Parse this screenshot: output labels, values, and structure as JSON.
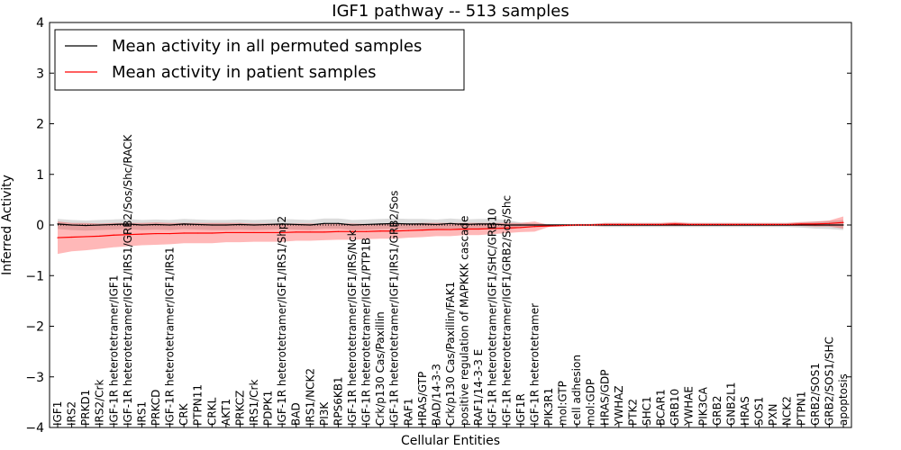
{
  "chart_data": {
    "type": "line",
    "title": "IGF1 pathway -- 513 samples",
    "xlabel": "Cellular Entities",
    "ylabel": "Inferred Activity",
    "ylim": [
      -4,
      4
    ],
    "yticks": [
      -4,
      -3,
      -2,
      -1,
      0,
      1,
      2,
      3,
      4
    ],
    "ytick_labels": [
      "−4",
      "−3",
      "−2",
      "−1",
      "0",
      "1",
      "2",
      "3",
      "4"
    ],
    "legend_position": "top-left",
    "categories": [
      "IGF1",
      "IRS2",
      "PRKD1",
      "IRS2/Crk",
      "IGF-1R heterotetramer/IGF1",
      "IGF-1R heterotetramer/IGF1/IRS1/GRB2/Sos/Shc/RACK",
      "IRS1",
      "PRKCD",
      "IGF-1R heterotetramer/IGF1/IRS1",
      "CRK",
      "PTPN11",
      "CRKL",
      "AKT1",
      "PRKCZ",
      "IRS1/Crk",
      "PDPK1",
      "IGF-1R heterotetramer/IGF1/IRS1/Shp2",
      "BAD",
      "IRS1/NCK2",
      "PI3K",
      "RPS6KB1",
      "IGF-1R heterotetramer/IGF1/IRS/Nck",
      "IGF-1R heterotetramer/IGF1/PTP1B",
      "Crk/p130 Cas/Paxillin",
      "IGF-1R heterotetramer/IGF1/IRS1/GRB2/Sos",
      "RAF1",
      "HRAS/GTP",
      "BAD/14-3-3",
      "Crk/p130 Cas/Paxillin/FAK1",
      "positive regulation of MAPKKK cascade",
      "RAF1/14-3-3 E",
      "IGF-1R heterotetramer/IGF1/SHC/GRB10",
      "IGF-1R heterotetramer/IGF1/GRB2/Sos/Shc",
      "IGF1R",
      "IGF-1R heterotetramer",
      "PIK3R1",
      "mol:GTP",
      "cell adhesion",
      "mol:GDP",
      "HRAS/GDP",
      "YWHAZ",
      "PTK2",
      "SHC1",
      "BCAR1",
      "GRB10",
      "YWHAE",
      "PIK3CA",
      "GRB2",
      "GNB2L1",
      "HRAS",
      "SOS1",
      "PXN",
      "NCK2",
      "PTPN1",
      "GRB2/SOS1",
      "GRB2/SOS1/SHC",
      "apoptosis"
    ],
    "series": [
      {
        "name": "Mean activity in all permuted samples",
        "color": "#000000",
        "values": [
          0.02,
          0.0,
          -0.01,
          0.0,
          0.01,
          0.02,
          0.0,
          0.01,
          0.0,
          0.02,
          0.01,
          0.0,
          0.0,
          0.01,
          0.0,
          0.01,
          0.02,
          0.01,
          0.0,
          0.03,
          0.03,
          0.0,
          0.01,
          0.02,
          0.03,
          0.02,
          0.02,
          0.01,
          0.03,
          0.01,
          0.02,
          0.02,
          0.0,
          0.0,
          0.0,
          0.0,
          0.0,
          0.0,
          0.0,
          0.0,
          0.0,
          0.0,
          0.0,
          0.0,
          0.0,
          0.0,
          0.0,
          0.0,
          0.0,
          0.0,
          0.0,
          0.0,
          0.0,
          0.0,
          0.0,
          0.0,
          0.0
        ],
        "band": [
          0.1,
          0.1,
          0.1,
          0.1,
          0.1,
          0.1,
          0.1,
          0.1,
          0.1,
          0.1,
          0.1,
          0.1,
          0.1,
          0.1,
          0.1,
          0.1,
          0.1,
          0.1,
          0.1,
          0.1,
          0.1,
          0.1,
          0.1,
          0.1,
          0.1,
          0.1,
          0.1,
          0.1,
          0.1,
          0.1,
          0.1,
          0.1,
          0.1,
          0.05,
          0.03,
          0.02,
          0.02,
          0.02,
          0.02,
          0.04,
          0.04,
          0.04,
          0.04,
          0.04,
          0.04,
          0.04,
          0.04,
          0.04,
          0.04,
          0.04,
          0.04,
          0.04,
          0.04,
          0.05,
          0.07,
          0.08,
          0.1
        ]
      },
      {
        "name": "Mean activity in patient samples",
        "color": "#ff0000",
        "values": [
          -0.25,
          -0.24,
          -0.23,
          -0.22,
          -0.2,
          -0.19,
          -0.18,
          -0.17,
          -0.17,
          -0.16,
          -0.16,
          -0.16,
          -0.15,
          -0.15,
          -0.15,
          -0.15,
          -0.15,
          -0.14,
          -0.14,
          -0.14,
          -0.13,
          -0.13,
          -0.13,
          -0.12,
          -0.12,
          -0.11,
          -0.1,
          -0.09,
          -0.09,
          -0.08,
          -0.08,
          -0.07,
          -0.06,
          -0.05,
          -0.03,
          -0.02,
          -0.01,
          0.0,
          0.0,
          0.01,
          0.01,
          0.01,
          0.01,
          0.01,
          0.02,
          0.01,
          0.01,
          0.01,
          0.01,
          0.01,
          0.01,
          0.01,
          0.01,
          0.02,
          0.02,
          0.03,
          0.05
        ],
        "band": [
          0.32,
          0.28,
          0.27,
          0.25,
          0.24,
          0.23,
          0.22,
          0.22,
          0.21,
          0.2,
          0.2,
          0.2,
          0.19,
          0.19,
          0.18,
          0.18,
          0.18,
          0.17,
          0.17,
          0.16,
          0.16,
          0.16,
          0.15,
          0.15,
          0.15,
          0.14,
          0.14,
          0.13,
          0.13,
          0.12,
          0.12,
          0.11,
          0.1,
          0.09,
          0.1,
          0.02,
          0.02,
          0.02,
          0.02,
          0.03,
          0.03,
          0.03,
          0.03,
          0.03,
          0.04,
          0.03,
          0.03,
          0.03,
          0.03,
          0.03,
          0.03,
          0.03,
          0.03,
          0.04,
          0.05,
          0.06,
          0.12
        ]
      }
    ]
  }
}
